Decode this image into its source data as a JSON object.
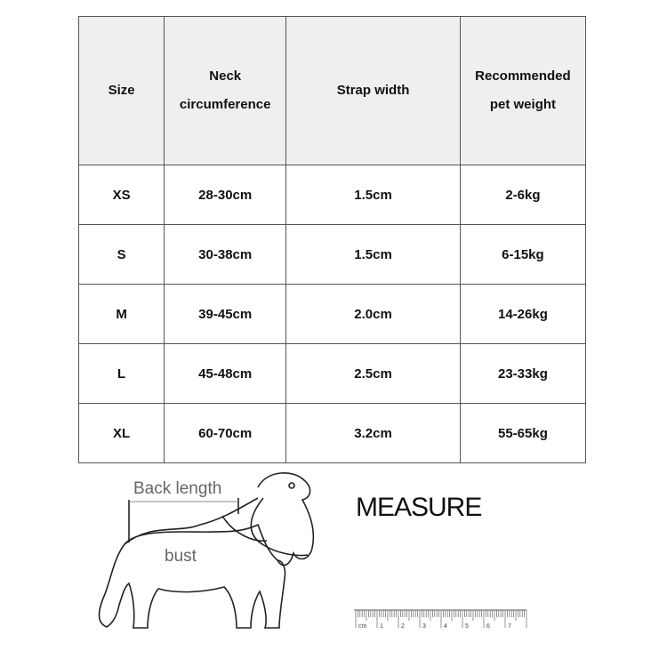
{
  "table": {
    "header": [
      [
        "Size"
      ],
      [
        "Neck",
        "circumference"
      ],
      [
        "Strap width"
      ],
      [
        "Recommended",
        "pet weight"
      ]
    ],
    "rows": [
      [
        "XS",
        "28-30cm",
        "1.5cm",
        "2-6kg"
      ],
      [
        "S",
        "30-38cm",
        "1.5cm",
        "6-15kg"
      ],
      [
        "M",
        "39-45cm",
        "2.0cm",
        "14-26kg"
      ],
      [
        "L",
        "45-48cm",
        "2.5cm",
        "23-33kg"
      ],
      [
        "XL",
        "60-70cm",
        "3.2cm",
        "55-65kg"
      ]
    ]
  },
  "diagram": {
    "back_label": "Back length",
    "bust_label": "bust",
    "title": "MEASURE",
    "ruler_labels": [
      "cm",
      "1",
      "2",
      "3",
      "4",
      "5",
      "6",
      "7"
    ]
  }
}
